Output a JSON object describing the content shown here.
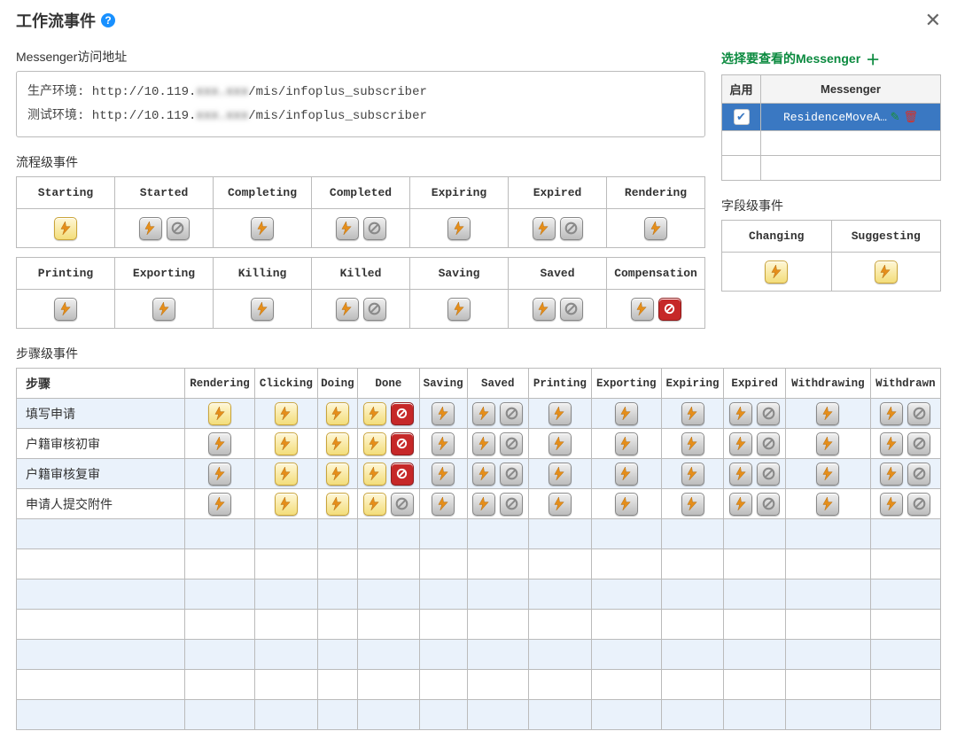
{
  "title": "工作流事件",
  "urls": {
    "section_label": "Messenger访问地址",
    "line1_pre": "生产环境: http://10.119.",
    "line1_blur": "xxx.xxx",
    "line1_post": "/mis/infoplus_subscriber",
    "line2_pre": "测试环境: http://10.119.",
    "line2_blur": "xxx.xxx",
    "line2_post": "/mis/infoplus_subscriber"
  },
  "messenger": {
    "title": "选择要查看的Messenger",
    "col_enable": "启用",
    "col_name": "Messenger",
    "rows": [
      {
        "enabled": true,
        "name": "ResidenceMoveA…"
      }
    ],
    "empty_rows": 2
  },
  "process": {
    "section_label": "流程级事件",
    "row1": [
      {
        "label": "Starting",
        "icons": [
          "lightning-hi"
        ]
      },
      {
        "label": "Started",
        "icons": [
          "lightning",
          "forbid"
        ]
      },
      {
        "label": "Completing",
        "icons": [
          "lightning"
        ]
      },
      {
        "label": "Completed",
        "icons": [
          "lightning",
          "forbid"
        ]
      },
      {
        "label": "Expiring",
        "icons": [
          "lightning"
        ]
      },
      {
        "label": "Expired",
        "icons": [
          "lightning",
          "forbid"
        ]
      },
      {
        "label": "Rendering",
        "icons": [
          "lightning"
        ]
      }
    ],
    "row2": [
      {
        "label": "Printing",
        "icons": [
          "lightning"
        ]
      },
      {
        "label": "Exporting",
        "icons": [
          "lightning"
        ]
      },
      {
        "label": "Killing",
        "icons": [
          "lightning"
        ]
      },
      {
        "label": "Killed",
        "icons": [
          "lightning",
          "forbid"
        ]
      },
      {
        "label": "Saving",
        "icons": [
          "lightning"
        ]
      },
      {
        "label": "Saved",
        "icons": [
          "lightning",
          "forbid"
        ]
      },
      {
        "label": "Compensation",
        "icons": [
          "lightning",
          "forbid-red"
        ]
      }
    ]
  },
  "field": {
    "section_label": "字段级事件",
    "cols": [
      {
        "label": "Changing",
        "icons": [
          "lightning-hi"
        ]
      },
      {
        "label": "Suggesting",
        "icons": [
          "lightning-hi"
        ]
      }
    ]
  },
  "step": {
    "section_label": "步骤级事件",
    "step_col": "步骤",
    "cols": [
      "Rendering",
      "Clicking",
      "Doing",
      "Done",
      "Saving",
      "Saved",
      "Printing",
      "Exporting",
      "Expiring",
      "Expired",
      "Withdrawing",
      "Withdrawn"
    ],
    "rows": [
      {
        "name": "填写申请",
        "cells": [
          [
            "lightning-hi"
          ],
          [
            "lightning-hi"
          ],
          [
            "lightning-hi"
          ],
          [
            "lightning-hi",
            "forbid-red"
          ],
          [
            "lightning"
          ],
          [
            "lightning",
            "forbid"
          ],
          [
            "lightning"
          ],
          [
            "lightning"
          ],
          [
            "lightning"
          ],
          [
            "lightning",
            "forbid"
          ],
          [
            "lightning"
          ],
          [
            "lightning",
            "forbid"
          ]
        ]
      },
      {
        "name": "户籍审核初审",
        "cells": [
          [
            "lightning"
          ],
          [
            "lightning-hi"
          ],
          [
            "lightning-hi"
          ],
          [
            "lightning-hi",
            "forbid-red"
          ],
          [
            "lightning"
          ],
          [
            "lightning",
            "forbid"
          ],
          [
            "lightning"
          ],
          [
            "lightning"
          ],
          [
            "lightning"
          ],
          [
            "lightning",
            "forbid"
          ],
          [
            "lightning"
          ],
          [
            "lightning",
            "forbid"
          ]
        ]
      },
      {
        "name": "户籍审核复审",
        "cells": [
          [
            "lightning"
          ],
          [
            "lightning-hi"
          ],
          [
            "lightning-hi"
          ],
          [
            "lightning-hi",
            "forbid-red"
          ],
          [
            "lightning"
          ],
          [
            "lightning",
            "forbid"
          ],
          [
            "lightning"
          ],
          [
            "lightning"
          ],
          [
            "lightning"
          ],
          [
            "lightning",
            "forbid"
          ],
          [
            "lightning"
          ],
          [
            "lightning",
            "forbid"
          ]
        ]
      },
      {
        "name": "申请人提交附件",
        "cells": [
          [
            "lightning"
          ],
          [
            "lightning-hi"
          ],
          [
            "lightning-hi"
          ],
          [
            "lightning-hi",
            "forbid"
          ],
          [
            "lightning"
          ],
          [
            "lightning",
            "forbid"
          ],
          [
            "lightning"
          ],
          [
            "lightning"
          ],
          [
            "lightning"
          ],
          [
            "lightning",
            "forbid"
          ],
          [
            "lightning"
          ],
          [
            "lightning",
            "forbid"
          ]
        ]
      }
    ],
    "empty_rows": 7
  },
  "icon_colors": {
    "lightning": "#e58e1a",
    "forbid_gray": "#8a8a8a",
    "forbid_red_bg": "#c62828"
  },
  "col_widths": {
    "step_name": 190
  }
}
